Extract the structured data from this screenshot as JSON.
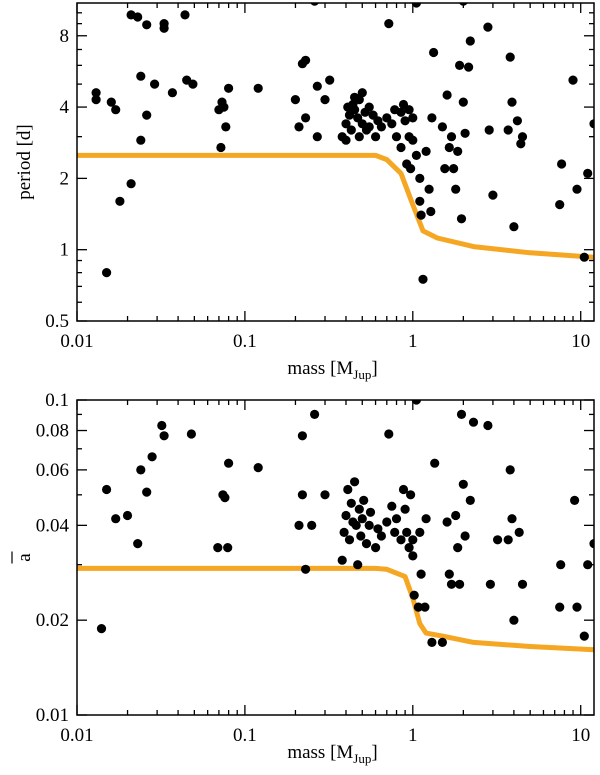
{
  "colors": {
    "curve": "#F5A623",
    "points": "#000000",
    "axes": "#000000"
  },
  "chart_data": [
    {
      "type": "scatter",
      "xscale": "log",
      "yscale": "log",
      "xlim": [
        0.01,
        12
      ],
      "ylim": [
        0.5,
        11
      ],
      "xlabel": {
        "main": "mass  [M",
        "sub": "Jup",
        "close": "]"
      },
      "ylabel": {
        "main": "period  [d]",
        "bar": false
      },
      "xticks": [
        {
          "value": 0.01,
          "label": "0.01"
        },
        {
          "value": 0.1,
          "label": "0.1"
        },
        {
          "value": 1,
          "label": "1"
        },
        {
          "value": 10,
          "label": "10"
        }
      ],
      "yticks": [
        {
          "value": 0.5,
          "label": "0.5"
        },
        {
          "value": 1,
          "label": "1"
        },
        {
          "value": 2,
          "label": "2"
        },
        {
          "value": 4,
          "label": "4"
        },
        {
          "value": 8,
          "label": "8"
        }
      ],
      "curve": [
        [
          0.01,
          2.5
        ],
        [
          0.6,
          2.5
        ],
        [
          0.7,
          2.4
        ],
        [
          0.85,
          2.1
        ],
        [
          1.0,
          1.55
        ],
        [
          1.15,
          1.2
        ],
        [
          1.4,
          1.12
        ],
        [
          2.3,
          1.03
        ],
        [
          5.0,
          0.97
        ],
        [
          12.0,
          0.93
        ]
      ],
      "points": [
        [
          0.013,
          4.6
        ],
        [
          0.013,
          4.3
        ],
        [
          0.015,
          0.8
        ],
        [
          0.016,
          4.2
        ],
        [
          0.017,
          3.9
        ],
        [
          0.018,
          1.6
        ],
        [
          0.021,
          1.9
        ],
        [
          0.021,
          9.8
        ],
        [
          0.023,
          9.6
        ],
        [
          0.024,
          2.9
        ],
        [
          0.024,
          5.4
        ],
        [
          0.026,
          3.7
        ],
        [
          0.026,
          8.9
        ],
        [
          0.029,
          5.0
        ],
        [
          0.033,
          9.0
        ],
        [
          0.033,
          8.6
        ],
        [
          0.037,
          4.6
        ],
        [
          0.044,
          9.8
        ],
        [
          0.045,
          5.2
        ],
        [
          0.049,
          5.0
        ],
        [
          0.07,
          3.9
        ],
        [
          0.072,
          2.7
        ],
        [
          0.073,
          4.2
        ],
        [
          0.075,
          4.0
        ],
        [
          0.077,
          3.3
        ],
        [
          0.08,
          4.8
        ],
        [
          0.12,
          4.8
        ],
        [
          0.2,
          4.3
        ],
        [
          0.21,
          3.3
        ],
        [
          0.22,
          6.1
        ],
        [
          0.23,
          6.3
        ],
        [
          0.23,
          3.6
        ],
        [
          0.27,
          3.0
        ],
        [
          0.27,
          4.9
        ],
        [
          0.26,
          11.2
        ],
        [
          0.3,
          4.3
        ],
        [
          0.32,
          5.2
        ],
        [
          0.38,
          3.0
        ],
        [
          0.4,
          3.4
        ],
        [
          0.4,
          2.9
        ],
        [
          0.41,
          4.0
        ],
        [
          0.42,
          3.7
        ],
        [
          0.43,
          3.2
        ],
        [
          0.44,
          4.1
        ],
        [
          0.45,
          4.4
        ],
        [
          0.45,
          3.9
        ],
        [
          0.47,
          3.6
        ],
        [
          0.48,
          4.3
        ],
        [
          0.48,
          3.0
        ],
        [
          0.5,
          4.6
        ],
        [
          0.5,
          3.4
        ],
        [
          0.52,
          3.8
        ],
        [
          0.53,
          3.2
        ],
        [
          0.55,
          4.0
        ],
        [
          0.55,
          3.3
        ],
        [
          0.58,
          3.7
        ],
        [
          0.6,
          3.0
        ],
        [
          0.62,
          3.5
        ],
        [
          0.65,
          3.3
        ],
        [
          0.7,
          3.6
        ],
        [
          0.72,
          9.0
        ],
        [
          0.75,
          3.4
        ],
        [
          0.78,
          3.9
        ],
        [
          0.8,
          3.0
        ],
        [
          0.85,
          2.7
        ],
        [
          0.85,
          3.8
        ],
        [
          0.88,
          4.1
        ],
        [
          0.9,
          3.5
        ],
        [
          0.92,
          2.3
        ],
        [
          0.95,
          3.9
        ],
        [
          0.95,
          3.0
        ],
        [
          0.97,
          2.2
        ],
        [
          1.0,
          2.9
        ],
        [
          1.0,
          3.6
        ],
        [
          1.05,
          11.0
        ],
        [
          1.05,
          2.5
        ],
        [
          1.1,
          1.6
        ],
        [
          1.1,
          2.0
        ],
        [
          1.12,
          1.4
        ],
        [
          1.15,
          0.75
        ],
        [
          1.2,
          2.6
        ],
        [
          1.25,
          1.8
        ],
        [
          1.28,
          1.45
        ],
        [
          1.3,
          3.6
        ],
        [
          1.33,
          6.8
        ],
        [
          1.5,
          3.3
        ],
        [
          1.55,
          2.2
        ],
        [
          1.6,
          4.5
        ],
        [
          1.65,
          2.7
        ],
        [
          1.7,
          3.0
        ],
        [
          1.75,
          2.2
        ],
        [
          1.8,
          1.8
        ],
        [
          1.85,
          2.6
        ],
        [
          1.9,
          6.0
        ],
        [
          1.95,
          1.35
        ],
        [
          2.0,
          11.2
        ],
        [
          2.0,
          4.2
        ],
        [
          2.05,
          3.1
        ],
        [
          2.15,
          5.9
        ],
        [
          2.2,
          7.6
        ],
        [
          2.8,
          8.7
        ],
        [
          2.85,
          3.2
        ],
        [
          3.0,
          1.7
        ],
        [
          3.7,
          3.2
        ],
        [
          3.8,
          6.5
        ],
        [
          3.9,
          4.2
        ],
        [
          4.0,
          1.25
        ],
        [
          4.2,
          3.5
        ],
        [
          4.4,
          2.8
        ],
        [
          4.5,
          3.0
        ],
        [
          7.5,
          1.55
        ],
        [
          7.7,
          2.3
        ],
        [
          9.0,
          5.2
        ],
        [
          9.5,
          1.8
        ],
        [
          10.5,
          0.93
        ],
        [
          11.0,
          2.1
        ],
        [
          12.0,
          3.4
        ]
      ]
    },
    {
      "type": "scatter",
      "xscale": "log",
      "yscale": "log",
      "xlim": [
        0.01,
        12
      ],
      "ylim": [
        0.01,
        0.1
      ],
      "xlabel": {
        "main": "mass  [M",
        "sub": "Jup",
        "close": "]"
      },
      "ylabel": {
        "main": "a",
        "bar": true
      },
      "xticks": [
        {
          "value": 0.01,
          "label": "0.01"
        },
        {
          "value": 0.1,
          "label": "0.1"
        },
        {
          "value": 1,
          "label": "1"
        },
        {
          "value": 10,
          "label": "10"
        }
      ],
      "yticks": [
        {
          "value": 0.01,
          "label": "0.01"
        },
        {
          "value": 0.02,
          "label": "0.02"
        },
        {
          "value": 0.04,
          "label": "0.04"
        },
        {
          "value": 0.06,
          "label": "0.06"
        },
        {
          "value": 0.08,
          "label": "0.08"
        },
        {
          "value": 0.1,
          "label": "0.1"
        }
      ],
      "curve": [
        [
          0.01,
          0.0292
        ],
        [
          0.6,
          0.0292
        ],
        [
          0.7,
          0.029
        ],
        [
          0.9,
          0.0275
        ],
        [
          1.0,
          0.0235
        ],
        [
          1.1,
          0.0195
        ],
        [
          1.2,
          0.0182
        ],
        [
          1.5,
          0.0178
        ],
        [
          2.3,
          0.017
        ],
        [
          5.0,
          0.0165
        ],
        [
          12.0,
          0.0161
        ]
      ],
      "points": [
        [
          0.014,
          0.0188
        ],
        [
          0.015,
          0.052
        ],
        [
          0.017,
          0.042
        ],
        [
          0.02,
          0.043
        ],
        [
          0.023,
          0.035
        ],
        [
          0.024,
          0.06
        ],
        [
          0.026,
          0.051
        ],
        [
          0.028,
          0.066
        ],
        [
          0.032,
          0.083
        ],
        [
          0.033,
          0.077
        ],
        [
          0.048,
          0.078
        ],
        [
          0.069,
          0.034
        ],
        [
          0.074,
          0.05
        ],
        [
          0.076,
          0.049
        ],
        [
          0.079,
          0.034
        ],
        [
          0.08,
          0.063
        ],
        [
          0.12,
          0.061
        ],
        [
          0.21,
          0.04
        ],
        [
          0.22,
          0.077
        ],
        [
          0.22,
          0.05
        ],
        [
          0.23,
          0.029
        ],
        [
          0.25,
          0.04
        ],
        [
          0.26,
          0.09
        ],
        [
          0.3,
          0.05
        ],
        [
          0.38,
          0.031
        ],
        [
          0.39,
          0.038
        ],
        [
          0.4,
          0.043
        ],
        [
          0.41,
          0.052
        ],
        [
          0.42,
          0.036
        ],
        [
          0.43,
          0.047
        ],
        [
          0.44,
          0.041
        ],
        [
          0.45,
          0.055
        ],
        [
          0.46,
          0.04
        ],
        [
          0.47,
          0.03
        ],
        [
          0.48,
          0.045
        ],
        [
          0.49,
          0.037
        ],
        [
          0.5,
          0.042
        ],
        [
          0.51,
          0.048
        ],
        [
          0.53,
          0.035
        ],
        [
          0.55,
          0.04
        ],
        [
          0.56,
          0.044
        ],
        [
          0.6,
          0.034
        ],
        [
          0.62,
          0.039
        ],
        [
          0.65,
          0.037
        ],
        [
          0.7,
          0.041
        ],
        [
          0.72,
          0.078
        ],
        [
          0.75,
          0.046
        ],
        [
          0.78,
          0.038
        ],
        [
          0.8,
          0.042
        ],
        [
          0.85,
          0.036
        ],
        [
          0.88,
          0.052
        ],
        [
          0.9,
          0.045
        ],
        [
          0.92,
          0.038
        ],
        [
          0.95,
          0.034
        ],
        [
          0.97,
          0.05
        ],
        [
          1.0,
          0.032
        ],
        [
          1.0,
          0.036
        ],
        [
          1.02,
          0.024
        ],
        [
          1.05,
          0.1
        ],
        [
          1.08,
          0.022
        ],
        [
          1.1,
          0.038
        ],
        [
          1.12,
          0.028
        ],
        [
          1.18,
          0.022
        ],
        [
          1.2,
          0.042
        ],
        [
          1.3,
          0.017
        ],
        [
          1.35,
          0.063
        ],
        [
          1.5,
          0.017
        ],
        [
          1.6,
          0.041
        ],
        [
          1.65,
          0.028
        ],
        [
          1.7,
          0.026
        ],
        [
          1.8,
          0.043
        ],
        [
          1.85,
          0.034
        ],
        [
          1.9,
          0.026
        ],
        [
          1.95,
          0.09
        ],
        [
          2.0,
          0.054
        ],
        [
          2.05,
          0.037
        ],
        [
          2.2,
          0.048
        ],
        [
          2.3,
          0.085
        ],
        [
          2.8,
          0.083
        ],
        [
          2.9,
          0.026
        ],
        [
          3.2,
          0.036
        ],
        [
          3.7,
          0.036
        ],
        [
          3.8,
          0.06
        ],
        [
          3.9,
          0.042
        ],
        [
          4.0,
          0.02
        ],
        [
          4.3,
          0.038
        ],
        [
          4.5,
          0.026
        ],
        [
          7.5,
          0.022
        ],
        [
          7.6,
          0.03
        ],
        [
          9.2,
          0.048
        ],
        [
          9.5,
          0.022
        ],
        [
          10.5,
          0.0178
        ],
        [
          11.0,
          0.03
        ],
        [
          12.0,
          0.035
        ]
      ]
    }
  ]
}
